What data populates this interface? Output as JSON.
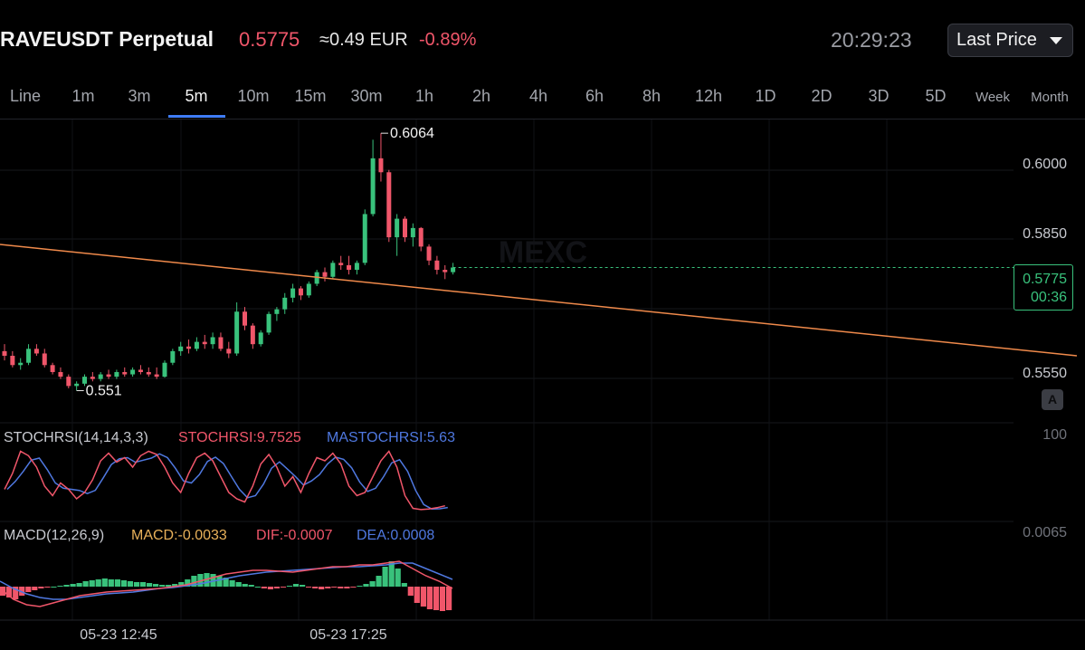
{
  "header": {
    "symbol": "RAVEUSDT Perpetual",
    "price": "0.5775",
    "approx": "≈0.49 EUR",
    "change": "-0.89%",
    "clock": "20:29:23",
    "price_type": "Last Price"
  },
  "tabs": [
    "Line",
    "1m",
    "3m",
    "5m",
    "10m",
    "15m",
    "30m",
    "1h",
    "2h",
    "4h",
    "6h",
    "8h",
    "12h",
    "1D",
    "2D",
    "3D",
    "5D",
    "Week",
    "Month"
  ],
  "active_tab": "5m",
  "watermark": "MEXC",
  "price_tag": {
    "price": "0.5775",
    "countdown": "00:36"
  },
  "auto_scale_label": "A",
  "colors": {
    "up": "#39c27c",
    "down": "#f0566a",
    "trendline": "#f08a4b",
    "dif": "#f0566a",
    "dea": "#4f78e0",
    "macd_label": "#e8b15a"
  },
  "chart_data": {
    "type": "candlestick",
    "main": {
      "y_ticks": [
        "0.6000",
        "0.5850",
        "0.5550"
      ],
      "high_label": "0.6064",
      "low_label": "0.551",
      "last_price": 0.5775,
      "approx_candles": [
        [
          0.5595,
          0.561,
          0.5575,
          0.5585
        ],
        [
          0.5585,
          0.5595,
          0.556,
          0.5565
        ],
        [
          0.5565,
          0.558,
          0.5555,
          0.557
        ],
        [
          0.557,
          0.561,
          0.5565,
          0.56
        ],
        [
          0.56,
          0.561,
          0.5585,
          0.559
        ],
        [
          0.559,
          0.56,
          0.556,
          0.5565
        ],
        [
          0.5565,
          0.557,
          0.5545,
          0.555
        ],
        [
          0.555,
          0.556,
          0.5535,
          0.554
        ],
        [
          0.554,
          0.5545,
          0.5515,
          0.552
        ],
        [
          0.552,
          0.553,
          0.551,
          0.5525
        ],
        [
          0.5525,
          0.5545,
          0.552,
          0.554
        ],
        [
          0.554,
          0.555,
          0.553,
          0.5535
        ],
        [
          0.5535,
          0.555,
          0.553,
          0.5545
        ],
        [
          0.5545,
          0.5555,
          0.5535,
          0.554
        ],
        [
          0.554,
          0.5555,
          0.5535,
          0.555
        ],
        [
          0.555,
          0.556,
          0.554,
          0.5545
        ],
        [
          0.5545,
          0.556,
          0.554,
          0.5555
        ],
        [
          0.5555,
          0.5565,
          0.5545,
          0.555
        ],
        [
          0.555,
          0.556,
          0.554,
          0.5545
        ],
        [
          0.5545,
          0.556,
          0.5535,
          0.554
        ],
        [
          0.554,
          0.5575,
          0.5538,
          0.557
        ],
        [
          0.557,
          0.56,
          0.5565,
          0.5595
        ],
        [
          0.5595,
          0.5615,
          0.5585,
          0.5605
        ],
        [
          0.5605,
          0.562,
          0.559,
          0.56
        ],
        [
          0.56,
          0.5625,
          0.5595,
          0.5615
        ],
        [
          0.5615,
          0.563,
          0.56,
          0.561
        ],
        [
          0.561,
          0.5635,
          0.56,
          0.5625
        ],
        [
          0.5625,
          0.5635,
          0.5595,
          0.56
        ],
        [
          0.56,
          0.5615,
          0.558,
          0.559
        ],
        [
          0.559,
          0.57,
          0.5585,
          0.568
        ],
        [
          0.568,
          0.569,
          0.564,
          0.565
        ],
        [
          0.565,
          0.5655,
          0.56,
          0.561
        ],
        [
          0.561,
          0.564,
          0.5605,
          0.5635
        ],
        [
          0.5635,
          0.568,
          0.563,
          0.5675
        ],
        [
          0.5675,
          0.569,
          0.566,
          0.5685
        ],
        [
          0.5685,
          0.572,
          0.5675,
          0.571
        ],
        [
          0.571,
          0.574,
          0.57,
          0.573
        ],
        [
          0.573,
          0.5735,
          0.5705,
          0.5715
        ],
        [
          0.5715,
          0.5745,
          0.571,
          0.574
        ],
        [
          0.574,
          0.577,
          0.5735,
          0.5765
        ],
        [
          0.5765,
          0.5775,
          0.5745,
          0.5755
        ],
        [
          0.5755,
          0.579,
          0.575,
          0.5785
        ],
        [
          0.5785,
          0.58,
          0.577,
          0.578
        ],
        [
          0.578,
          0.58,
          0.576,
          0.577
        ],
        [
          0.577,
          0.579,
          0.576,
          0.5785
        ],
        [
          0.5785,
          0.59,
          0.578,
          0.589
        ],
        [
          0.589,
          0.605,
          0.5885,
          0.601
        ],
        [
          0.601,
          0.6064,
          0.596,
          0.598
        ],
        [
          0.598,
          0.5985,
          0.583,
          0.584
        ],
        [
          0.584,
          0.589,
          0.58,
          0.588
        ],
        [
          0.588,
          0.5885,
          0.583,
          0.584
        ],
        [
          0.584,
          0.587,
          0.582,
          0.586
        ],
        [
          0.586,
          0.5862,
          0.581,
          0.582
        ],
        [
          0.582,
          0.5825,
          0.578,
          0.579
        ],
        [
          0.579,
          0.58,
          0.576,
          0.577
        ],
        [
          0.577,
          0.578,
          0.575,
          0.5765
        ],
        [
          0.5765,
          0.5785,
          0.576,
          0.5775
        ]
      ]
    },
    "stochrsi": {
      "label": "STOCHRSI(14,14,3,3)",
      "k_label": "STOCHRSI:9.7525",
      "d_label": "MASTOCHRSI:5.63",
      "axis_label": "100"
    },
    "macd": {
      "label": "MACD(12,26,9)",
      "macd_label": "MACD:-0.0033",
      "dif_label": "DIF:-0.0007",
      "dea_label": "DEA:0.0008",
      "axis_label": "0.0065"
    },
    "x_labels": [
      "05-23 12:45",
      "05-23 17:25"
    ]
  }
}
